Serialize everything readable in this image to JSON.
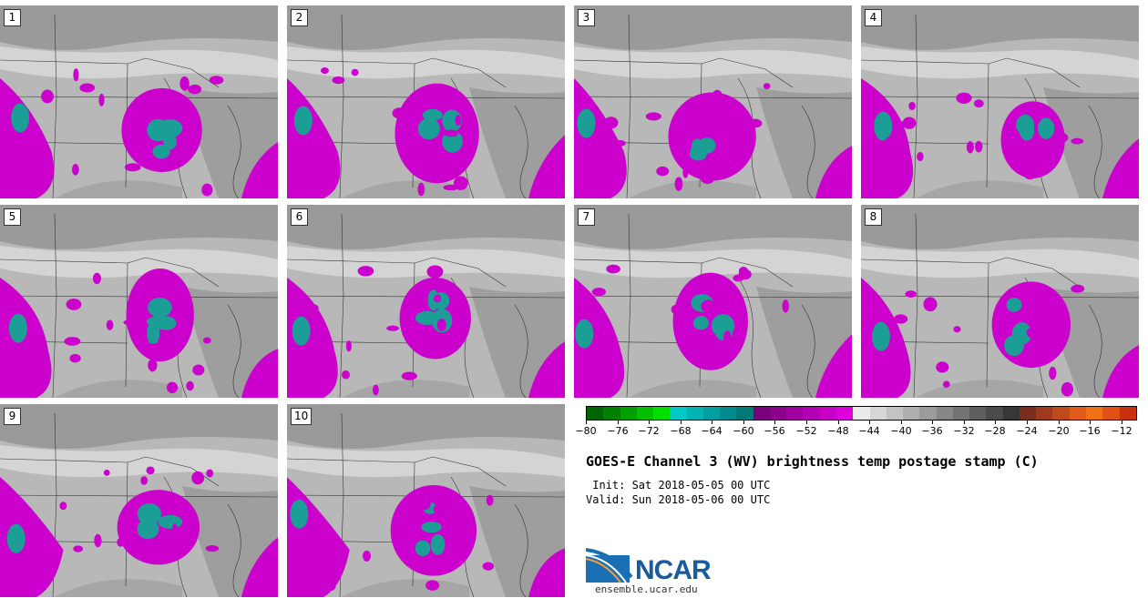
{
  "title": "GOES-E Channel 3 (WV) brightness temp postage stamp (C)",
  "init_label": " Init: Sat 2018-05-05 00 UTC",
  "valid_label": "Valid: Sun 2018-05-06 00 UTC",
  "logo": {
    "wordmark": "NCAR",
    "url": "ensemble.ucar.edu"
  },
  "panels": [
    {
      "label": "1"
    },
    {
      "label": "2"
    },
    {
      "label": "3"
    },
    {
      "label": "4"
    },
    {
      "label": "5"
    },
    {
      "label": "6"
    },
    {
      "label": "7"
    },
    {
      "label": "8"
    },
    {
      "label": "9"
    },
    {
      "label": "10"
    }
  ],
  "colorbar": {
    "unit": "C",
    "colors": [
      "#006400",
      "#008000",
      "#00a000",
      "#00c000",
      "#00e000",
      "#00c8c8",
      "#00b4b4",
      "#00a0a0",
      "#008c8c",
      "#007878",
      "#780078",
      "#8c008c",
      "#a000a0",
      "#b400b4",
      "#c800c8",
      "#dc00dc",
      "#ebebeb",
      "#d7d7d7",
      "#c3c3c3",
      "#afafaf",
      "#9b9b9b",
      "#878787",
      "#737373",
      "#5f5f5f",
      "#4b4b4b",
      "#373737",
      "#7a2d1a",
      "#a03a1e",
      "#c04a1c",
      "#e05a18",
      "#f07014",
      "#e25012",
      "#c83010"
    ],
    "ticks": [
      "−80",
      "−76",
      "−72",
      "−68",
      "−64",
      "−60",
      "−56",
      "−52",
      "−48",
      "−44",
      "−40",
      "−36",
      "−32",
      "−28",
      "−24",
      "−20",
      "−16",
      "−12"
    ]
  },
  "colors": {
    "cold_cloud": "#cc00cc",
    "very_cold_cloud": "#1a9e96",
    "dry_dark": "#8a8a8a",
    "moist_light": "#d8d8d8",
    "border": "#333333"
  }
}
